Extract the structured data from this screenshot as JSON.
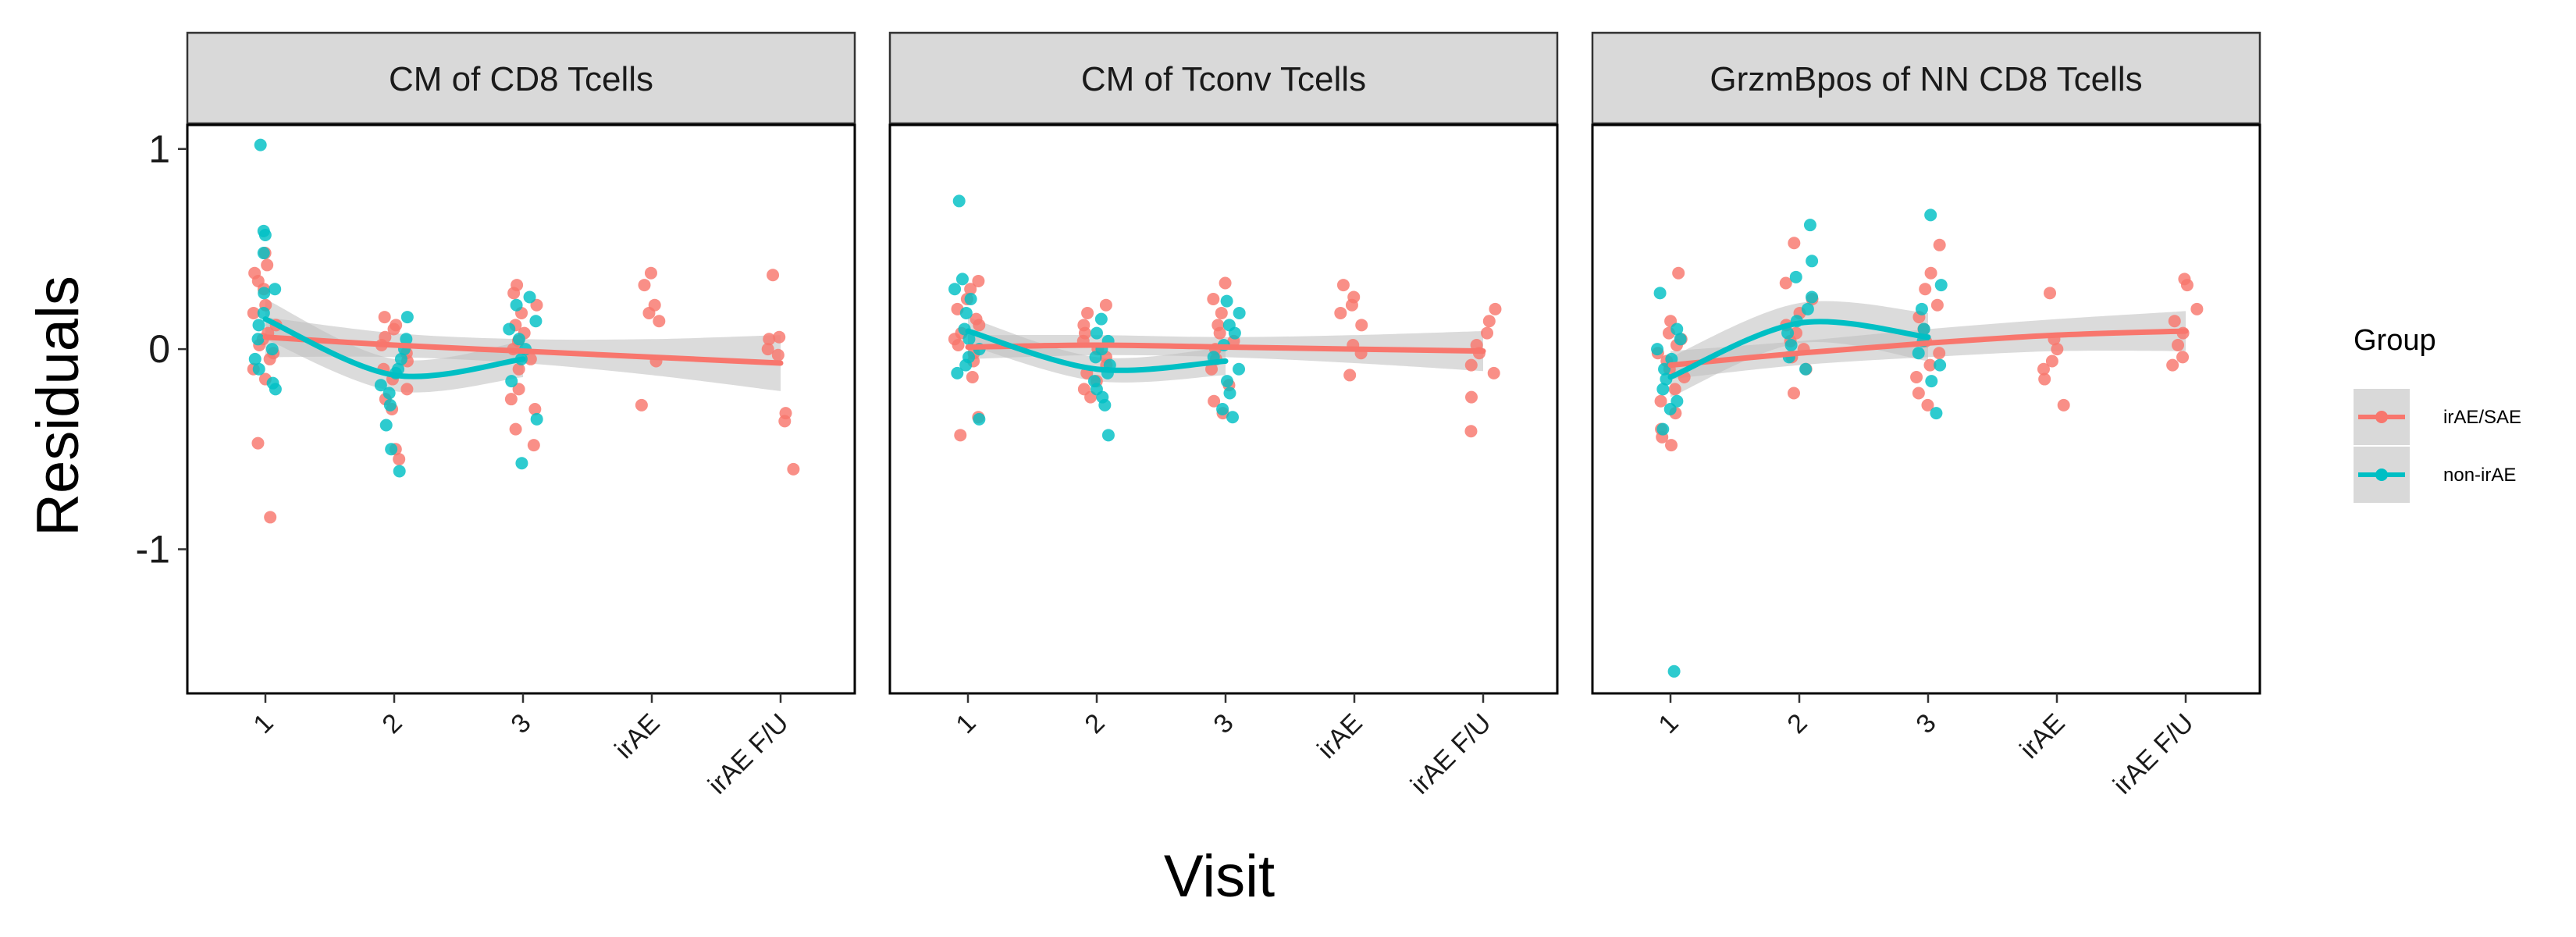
{
  "chart_data": {
    "type": "scatter",
    "xlabel": "Visit",
    "ylabel": "Residuals",
    "categories": [
      "1",
      "2",
      "3",
      "irAE",
      "irAE F/U"
    ],
    "ylim": [
      -1.72,
      1.12
    ],
    "yticks": [
      -1,
      0,
      1
    ],
    "ytick_labels": [
      "-1",
      "0",
      "1"
    ],
    "grid": false,
    "legend": {
      "title": "Group",
      "position": "right",
      "entries": [
        {
          "label": "irAE/SAE",
          "color": "#F8766D"
        },
        {
          "label": "non-irAE",
          "color": "#00BFC4"
        }
      ]
    },
    "colors": {
      "irAE/SAE": "#F8766D",
      "non-irAE": "#00BFC4",
      "band": "#bdbdbd",
      "strip": "#d9d9d9"
    },
    "facets": [
      {
        "title": "CM of CD8 Tcells",
        "points": {
          "irAE/SAE": {
            "1": [
              0.48,
              0.42,
              0.38,
              0.34,
              0.3,
              0.22,
              0.18,
              0.12,
              0.08,
              0.05,
              0.02,
              -0.02,
              -0.05,
              -0.1,
              -0.15,
              -0.47,
              -0.84
            ],
            "2": [
              0.16,
              0.12,
              0.1,
              0.06,
              0.02,
              -0.02,
              -0.06,
              -0.1,
              -0.15,
              -0.2,
              -0.25,
              -0.3,
              -0.5,
              -0.55
            ],
            "3": [
              0.32,
              0.28,
              0.22,
              0.18,
              0.12,
              0.08,
              0.04,
              0.0,
              -0.05,
              -0.1,
              -0.2,
              -0.25,
              -0.3,
              -0.4,
              -0.48
            ],
            "irAE": [
              0.38,
              0.32,
              0.22,
              0.18,
              0.14,
              -0.06,
              -0.28
            ],
            "irAE F/U": [
              0.37,
              0.06,
              0.05,
              0.0,
              -0.03,
              -0.32,
              -0.36,
              -0.6
            ]
          },
          "non-irAE": {
            "1": [
              1.02,
              0.59,
              0.57,
              0.48,
              0.3,
              0.28,
              0.18,
              0.12,
              0.05,
              0.0,
              -0.05,
              -0.1,
              -0.17,
              -0.2
            ],
            "2": [
              0.16,
              0.05,
              0.0,
              -0.05,
              -0.1,
              -0.12,
              -0.18,
              -0.22,
              -0.28,
              -0.38,
              -0.5,
              -0.61
            ],
            "3": [
              0.26,
              0.22,
              0.14,
              0.1,
              0.05,
              0.0,
              -0.05,
              -0.16,
              -0.35,
              -0.57
            ]
          }
        },
        "smooth": {
          "irAE/SAE": [
            0.06,
            0.02,
            -0.01,
            -0.04,
            -0.07
          ],
          "non-irAE": [
            0.15,
            -0.13,
            -0.05
          ]
        },
        "band_halfwidth": {
          "irAE/SAE": [
            0.1,
            0.06,
            0.06,
            0.09,
            0.14
          ],
          "non-irAE": [
            0.1,
            0.08,
            0.09
          ]
        }
      },
      {
        "title": "CM of Tconv Tcells",
        "points": {
          "irAE/SAE": {
            "1": [
              0.34,
              0.3,
              0.25,
              0.2,
              0.15,
              0.12,
              0.08,
              0.05,
              0.02,
              -0.02,
              -0.06,
              -0.14,
              -0.34,
              -0.43
            ],
            "2": [
              0.22,
              0.18,
              0.12,
              0.08,
              0.04,
              0.0,
              -0.04,
              -0.08,
              -0.12,
              -0.16,
              -0.2,
              -0.24
            ],
            "3": [
              0.33,
              0.25,
              0.18,
              0.12,
              0.08,
              0.04,
              0.0,
              -0.05,
              -0.1,
              -0.18,
              -0.26,
              -0.32
            ],
            "irAE": [
              0.32,
              0.26,
              0.22,
              0.18,
              0.12,
              0.02,
              -0.02,
              -0.13
            ],
            "irAE F/U": [
              0.2,
              0.14,
              0.08,
              0.02,
              -0.02,
              -0.08,
              -0.12,
              -0.24,
              -0.41
            ]
          },
          "non-irAE": {
            "1": [
              0.74,
              0.35,
              0.3,
              0.25,
              0.18,
              0.1,
              0.05,
              0.0,
              -0.04,
              -0.08,
              -0.12,
              -0.35
            ],
            "2": [
              0.15,
              0.08,
              0.04,
              0.0,
              -0.04,
              -0.08,
              -0.12,
              -0.16,
              -0.2,
              -0.24,
              -0.28,
              -0.43
            ],
            "3": [
              0.24,
              0.18,
              0.12,
              0.08,
              0.02,
              -0.04,
              -0.1,
              -0.16,
              -0.22,
              -0.3,
              -0.34
            ]
          }
        },
        "smooth": {
          "irAE/SAE": [
            0.01,
            0.02,
            0.01,
            0.0,
            -0.01
          ],
          "non-irAE": [
            0.09,
            -0.1,
            -0.06
          ]
        },
        "band_halfwidth": {
          "irAE/SAE": [
            0.06,
            0.05,
            0.05,
            0.07,
            0.1
          ],
          "non-irAE": [
            0.07,
            0.06,
            0.07
          ]
        }
      },
      {
        "title": "GrzmBpos of NN CD8 Tcells",
        "points": {
          "irAE/SAE": {
            "1": [
              0.38,
              0.14,
              0.08,
              0.05,
              0.02,
              -0.02,
              -0.06,
              -0.1,
              -0.14,
              -0.2,
              -0.26,
              -0.32,
              -0.4,
              -0.44,
              -0.48
            ],
            "2": [
              0.53,
              0.33,
              0.25,
              0.18,
              0.12,
              0.08,
              0.04,
              0.0,
              -0.04,
              -0.1,
              -0.22
            ],
            "3": [
              0.52,
              0.38,
              0.3,
              0.22,
              0.16,
              0.1,
              0.04,
              -0.02,
              -0.08,
              -0.14,
              -0.22,
              -0.28
            ],
            "irAE": [
              0.28,
              0.05,
              0.0,
              -0.06,
              -0.1,
              -0.15,
              -0.28
            ],
            "irAE F/U": [
              0.35,
              0.32,
              0.2,
              0.14,
              0.08,
              0.02,
              -0.04,
              -0.08
            ]
          },
          "non-irAE": {
            "1": [
              0.28,
              0.1,
              0.05,
              0.0,
              -0.05,
              -0.1,
              -0.15,
              -0.2,
              -0.26,
              -0.3,
              -0.4,
              -1.61
            ],
            "2": [
              0.62,
              0.44,
              0.36,
              0.26,
              0.2,
              0.14,
              0.08,
              0.02,
              -0.04,
              -0.1
            ],
            "3": [
              0.67,
              0.32,
              0.2,
              0.1,
              0.04,
              -0.02,
              -0.08,
              -0.16,
              -0.32
            ]
          }
        },
        "smooth": {
          "irAE/SAE": [
            -0.08,
            -0.02,
            0.03,
            0.07,
            0.09
          ],
          "non-irAE": [
            -0.14,
            0.13,
            0.06
          ]
        },
        "band_halfwidth": {
          "irAE/SAE": [
            0.07,
            0.06,
            0.07,
            0.08,
            0.1
          ],
          "non-irAE": [
            0.1,
            0.1,
            0.12
          ]
        }
      }
    ]
  }
}
